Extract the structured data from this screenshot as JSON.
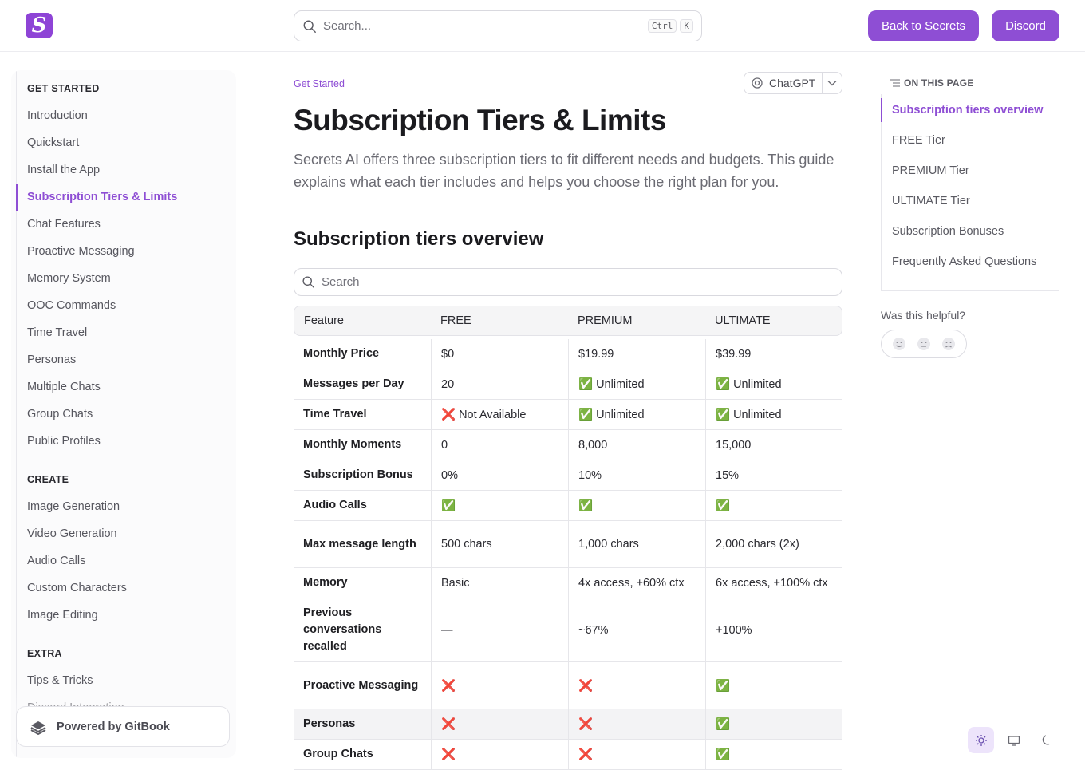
{
  "header": {
    "logo_letter": "S",
    "search_placeholder": "Search...",
    "kbd_ctrl": "Ctrl",
    "kbd_k": "K",
    "back_button": "Back to Secrets",
    "discord_button": "Discord"
  },
  "sidebar": {
    "sections": [
      {
        "title": "GET STARTED",
        "items": [
          "Introduction",
          "Quickstart",
          "Install the App",
          "Subscription Tiers & Limits",
          "Chat Features",
          "Proactive Messaging",
          "Memory System",
          "OOC Commands",
          "Time Travel",
          "Personas",
          "Multiple Chats",
          "Group Chats",
          "Public Profiles"
        ]
      },
      {
        "title": "CREATE",
        "items": [
          "Image Generation",
          "Video Generation",
          "Audio Calls",
          "Custom Characters",
          "Image Editing"
        ]
      },
      {
        "title": "EXTRA",
        "items": [
          "Tips & Tricks",
          "Discord Integration"
        ]
      }
    ],
    "active_item": "Subscription Tiers & Limits",
    "powered_by": "Powered by GitBook"
  },
  "main": {
    "breadcrumb": "Get Started",
    "ai_button": "ChatGPT",
    "title": "Subscription Tiers & Limits",
    "lead": "Secrets AI offers three subscription tiers to fit different needs and budgets. This guide explains what each tier includes and helps you choose the right plan for you.",
    "section_heading": "Subscription tiers overview",
    "table_search_placeholder": "Search",
    "table": {
      "headers": [
        "Feature",
        "FREE",
        "PREMIUM",
        "ULTIMATE"
      ],
      "rows": [
        [
          "Monthly Price",
          "$0",
          "$19.99",
          "$39.99"
        ],
        [
          "Messages per Day",
          "20",
          "✅ Unlimited",
          "✅ Unlimited"
        ],
        [
          "Time Travel",
          "❌ Not Available",
          "✅ Unlimited",
          "✅ Unlimited"
        ],
        [
          "Monthly Moments",
          "0",
          "8,000",
          "15,000"
        ],
        [
          "Subscription Bonus",
          "0%",
          "10%",
          "15%"
        ],
        [
          "Audio Calls",
          "✅",
          "✅",
          "✅"
        ],
        [
          "Max message length",
          "500 chars",
          "1,000 chars",
          "2,000 chars (2x)"
        ],
        [
          "Memory",
          "Basic",
          "4x access, +60% ctx",
          "6x access, +100% ctx"
        ],
        [
          "Previous conversations recalled",
          "—",
          "~67%",
          "+100%"
        ],
        [
          "Proactive Messaging",
          "❌",
          "❌",
          "✅"
        ],
        [
          "Personas",
          "❌",
          "❌",
          "✅"
        ],
        [
          "Group Chats",
          "❌",
          "❌",
          "✅"
        ]
      ]
    }
  },
  "toc": {
    "heading": "ON THIS PAGE",
    "items": [
      "Subscription tiers overview",
      "FREE Tier",
      "PREMIUM Tier",
      "ULTIMATE Tier",
      "Subscription Bonuses",
      "Frequently Asked Questions"
    ],
    "helpful": "Was this helpful?"
  },
  "colors": {
    "accent": "#8e4ed4",
    "check": "#55b04b",
    "cross": "#e0352b"
  }
}
